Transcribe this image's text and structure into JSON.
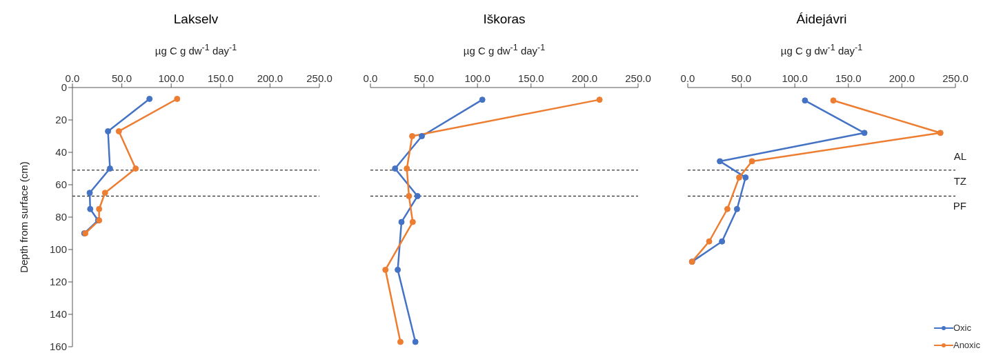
{
  "chart_data": [
    {
      "type": "line",
      "title": "Lakselv",
      "xlabel": "µg C g dw$^{-1}$ day$^{-1}$",
      "ylabel": "Depth from surface (cm)",
      "xlim": [
        0,
        250
      ],
      "xticks": [
        {
          "value": 0,
          "label": "0.0"
        },
        {
          "value": 50,
          "label": "50.0"
        },
        {
          "value": 100,
          "label": "100.0"
        },
        {
          "value": 150,
          "label": "150.0"
        },
        {
          "value": 200,
          "label": "200.0"
        },
        {
          "value": 250,
          "label": "250.0"
        }
      ],
      "ylim": [
        160,
        0
      ],
      "yticks": [
        0,
        20,
        40,
        60,
        80,
        100,
        120,
        140,
        160
      ],
      "marker": "circle",
      "grid": false,
      "legend": false,
      "ref_lines": [
        {
          "axis": "y",
          "value": 51
        },
        {
          "axis": "y",
          "value": 67
        }
      ],
      "series": [
        {
          "color": "#4472c4",
          "x": [
            78,
            36,
            38,
            17.5,
            18,
            26,
            12
          ],
          "values": [
            7,
            27,
            50,
            65,
            75,
            82,
            90
          ]
        },
        {
          "color": "#ed7d31",
          "x": [
            106,
            47,
            64,
            33,
            27,
            27,
            13
          ],
          "values": [
            7,
            27,
            50,
            65,
            75,
            82,
            90
          ]
        }
      ]
    },
    {
      "type": "line",
      "title": "Iškoras",
      "xlabel": "µg C g dw$^{-1}$ day$^{-1}$",
      "xlim": [
        0,
        250
      ],
      "xticks": [
        {
          "value": 0,
          "label": "0.0"
        },
        {
          "value": 50,
          "label": "50.0"
        },
        {
          "value": 100,
          "label": "100.0"
        },
        {
          "value": 150,
          "label": "150.0"
        },
        {
          "value": 200,
          "label": "200.0"
        },
        {
          "value": 250,
          "label": "250.0"
        }
      ],
      "ylim": [
        160,
        0
      ],
      "yticks": [
        0,
        20,
        40,
        60,
        80,
        100,
        120,
        140,
        160
      ],
      "tick_labels": "x",
      "marker": "circle",
      "grid": false,
      "legend": false,
      "ref_lines": [
        {
          "axis": "y",
          "value": 51
        },
        {
          "axis": "y",
          "value": 67
        }
      ],
      "series": [
        {
          "color": "#4472c4",
          "x": [
            104.5,
            48,
            23,
            44,
            29,
            25.5,
            42
          ],
          "values": [
            7.5,
            30,
            50,
            67,
            83,
            112.5,
            157
          ]
        },
        {
          "color": "#ed7d31",
          "x": [
            214,
            39,
            34,
            36,
            39.5,
            14,
            28
          ],
          "values": [
            7.5,
            30,
            50,
            67,
            83,
            112.5,
            157
          ]
        }
      ]
    },
    {
      "type": "line",
      "title": "Áidejávri",
      "xlabel": "µg C g dw$^{-1}$ day$^{-1}$",
      "xlim": [
        0,
        250
      ],
      "xticks": [
        {
          "value": 0,
          "label": "0.0"
        },
        {
          "value": 50,
          "label": "50.0"
        },
        {
          "value": 100,
          "label": "100.0"
        },
        {
          "value": 150,
          "label": "150.0"
        },
        {
          "value": 200,
          "label": "200.0"
        },
        {
          "value": 250,
          "label": "250.0"
        }
      ],
      "ylim": [
        160,
        0
      ],
      "yticks": [
        0,
        20,
        40,
        60,
        80,
        100,
        120,
        140,
        160
      ],
      "tick_labels": "x",
      "marker": "circle",
      "grid": false,
      "legend": "bottom right",
      "ref_lines": [
        {
          "axis": "y",
          "value": 51
        },
        {
          "axis": "y",
          "value": 67
        }
      ],
      "annotations": [
        "AL",
        "TZ",
        "PF"
      ],
      "series": [
        {
          "name": "Oxic",
          "color": "#4472c4",
          "x": [
            109.5,
            165,
            30,
            54,
            46,
            32,
            4
          ],
          "values": [
            8,
            28,
            45.5,
            55.5,
            75,
            95,
            107.5
          ]
        },
        {
          "name": "Anoxic",
          "color": "#ed7d31",
          "x": [
            136,
            236,
            60,
            48,
            37,
            20,
            4
          ],
          "values": [
            8,
            28,
            45.5,
            55.5,
            75,
            95,
            107.5
          ]
        }
      ]
    }
  ]
}
